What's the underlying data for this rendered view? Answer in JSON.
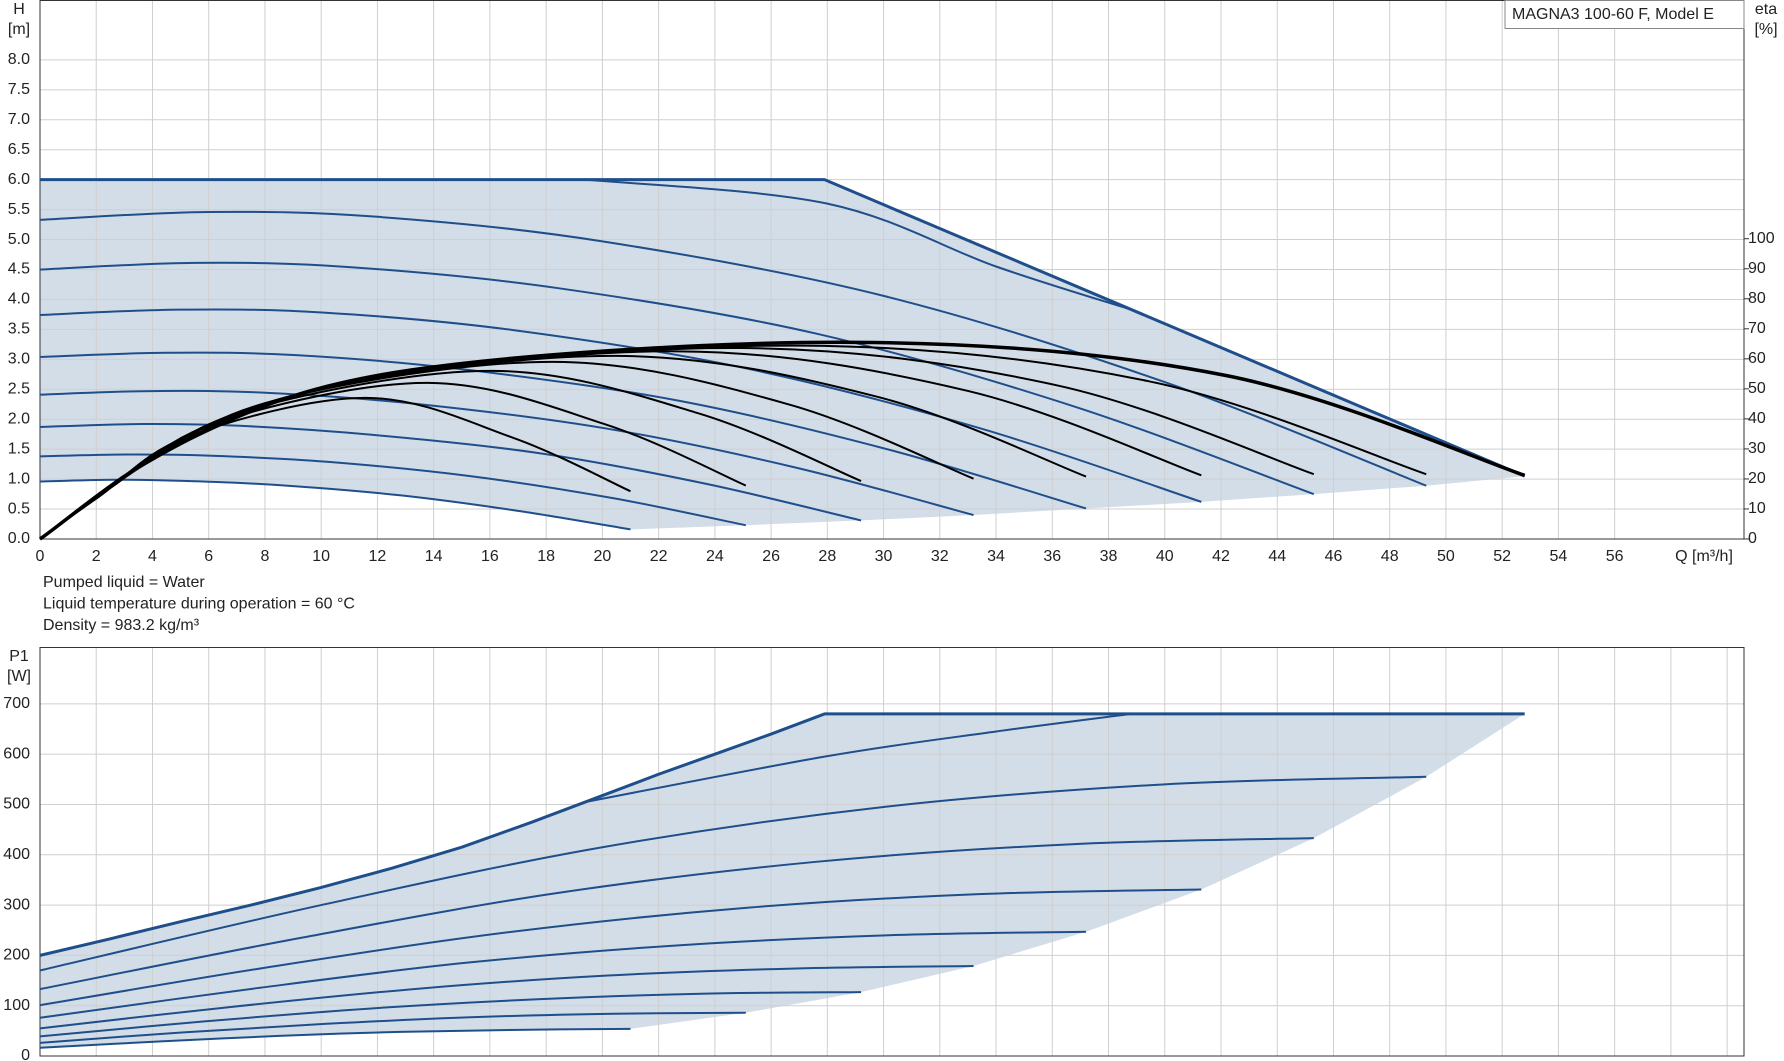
{
  "chart_data": [
    {
      "type": "line",
      "title": "MAGNA3 100-60 F, Model E",
      "ylabel": "H",
      "yunit": "[m]",
      "y2label": "eta",
      "y2unit": "[%]",
      "xlabel": "Q [m³/h]",
      "annotations": [
        "Pumped liquid = Water",
        "Liquid temperature during operation = 60 °C",
        "Density = 983.2 kg/m³"
      ],
      "xlim": [
        0,
        60.6
      ],
      "xticks": [
        0,
        2,
        4,
        6,
        8,
        10,
        12,
        14,
        16,
        18,
        20,
        22,
        24,
        26,
        28,
        30,
        32,
        34,
        36,
        38,
        40,
        42,
        44,
        46,
        48,
        50,
        52,
        54,
        56
      ],
      "ylim": [
        0,
        9
      ],
      "yticks": [
        {
          "value": 0,
          "label": "0.0"
        },
        0.5,
        {
          "value": 1,
          "label": "1.0"
        },
        1.5,
        {
          "value": 2,
          "label": "2.0"
        },
        2.5,
        {
          "value": 3,
          "label": "3.0"
        },
        3.5,
        {
          "value": 4,
          "label": "4.0"
        },
        4.5,
        {
          "value": 5,
          "label": "5.0"
        },
        5.5,
        {
          "value": 6,
          "label": "6.0"
        },
        6.5,
        {
          "value": 7,
          "label": "7.0"
        },
        7.5,
        {
          "value": 8,
          "label": "8.0"
        }
      ],
      "y2lim": [
        0,
        179.5
      ],
      "y2ticks": [
        0,
        10,
        20,
        30,
        40,
        50,
        60,
        70,
        80,
        90,
        100
      ],
      "grid": true,
      "area_color": "#d3dde8",
      "series": [
        {
          "color": "#1f4f8b",
          "width": 3,
          "smooth": false,
          "x": [
            0,
            27.9,
            52.8
          ],
          "values": [
            6.0,
            6.0,
            1.05
          ]
        },
        {
          "color": "#1f4f8b",
          "width": 2,
          "x": [
            19.4,
            28,
            34,
            38.8
          ],
          "values": [
            6.0,
            5.6,
            4.55,
            3.83
          ]
        },
        {
          "color": "#1f4f8b",
          "width": 2,
          "x": [
            0,
            6,
            12,
            20,
            30,
            40,
            49.3
          ],
          "values": [
            5.33,
            5.46,
            5.38,
            4.97,
            4.06,
            2.62,
            0.89
          ]
        },
        {
          "color": "#1f4f8b",
          "width": 2,
          "x": [
            0,
            5.5,
            11.0,
            18.4,
            27.6,
            36.8,
            45.3
          ],
          "values": [
            4.5,
            4.61,
            4.54,
            4.19,
            3.43,
            2.21,
            0.75
          ]
        },
        {
          "color": "#1f4f8b",
          "width": 2,
          "x": [
            0,
            5.0,
            10.1,
            16.8,
            25.1,
            33.5,
            41.3
          ],
          "values": [
            3.74,
            3.83,
            3.78,
            3.49,
            2.85,
            1.84,
            0.62
          ]
        },
        {
          "color": "#1f4f8b",
          "width": 2,
          "x": [
            0,
            4.5,
            9.1,
            15.1,
            22.7,
            30.2,
            37.2
          ],
          "values": [
            3.04,
            3.11,
            3.07,
            2.83,
            2.31,
            1.49,
            0.51
          ]
        },
        {
          "color": "#1f4f8b",
          "width": 2,
          "x": [
            0,
            4.0,
            8.1,
            13.5,
            20.2,
            26.9,
            33.2
          ],
          "values": [
            2.41,
            2.47,
            2.44,
            2.25,
            1.84,
            1.19,
            0.4
          ]
        },
        {
          "color": "#1f4f8b",
          "width": 2,
          "x": [
            0,
            3.6,
            7.1,
            11.8,
            17.8,
            23.7,
            29.2
          ],
          "values": [
            1.87,
            1.92,
            1.89,
            1.74,
            1.43,
            0.92,
            0.31
          ]
        },
        {
          "color": "#1f4f8b",
          "width": 2,
          "x": [
            0,
            3.1,
            6.1,
            10.2,
            15.3,
            20.4,
            25.1
          ],
          "values": [
            1.38,
            1.41,
            1.39,
            1.29,
            1.05,
            0.68,
            0.23
          ]
        },
        {
          "color": "#1f4f8b",
          "width": 2,
          "x": [
            0,
            2.6,
            5.1,
            8.5,
            12.8,
            17.0,
            21.0
          ],
          "values": [
            0.96,
            0.99,
            0.97,
            0.9,
            0.73,
            0.47,
            0.16
          ]
        },
        {
          "color": "#000000",
          "width": 2,
          "axis": "y2",
          "x": [
            0,
            2.1,
            5.3,
            11.6,
            16.8,
            21.0
          ],
          "values": [
            0,
            14.1,
            34.3,
            47,
            33.8,
            15.9
          ]
        },
        {
          "color": "#000000",
          "width": 2,
          "axis": "y2",
          "x": [
            0,
            2.5,
            6.3,
            13.8,
            20.1,
            25.1
          ],
          "values": [
            0,
            17.0,
            38.8,
            52,
            38.2,
            17.8
          ]
        },
        {
          "color": "#000000",
          "width": 2,
          "axis": "y2",
          "x": [
            0,
            2.9,
            7.3,
            16.1,
            23.4,
            29.2
          ],
          "values": [
            0,
            19.8,
            42.7,
            56,
            41.9,
            19.3
          ]
        },
        {
          "color": "#000000",
          "width": 2,
          "axis": "y2",
          "x": [
            0,
            3.3,
            8.3,
            18.3,
            26.6,
            33.2
          ],
          "values": [
            0,
            22.4,
            46.0,
            59,
            44.9,
            20.1
          ]
        },
        {
          "color": "#000000",
          "width": 2,
          "axis": "y2",
          "x": [
            0,
            3.7,
            9.3,
            20.5,
            29.8,
            37.2
          ],
          "values": [
            0,
            24.7,
            48.5,
            61,
            47.3,
            20.8
          ]
        },
        {
          "color": "#000000",
          "width": 2,
          "axis": "y2",
          "x": [
            0,
            4.1,
            10.3,
            22.7,
            33.0,
            41.3
          ],
          "values": [
            0,
            26.9,
            50.7,
            62.5,
            49.3,
            21.2
          ]
        },
        {
          "color": "#000000",
          "width": 2,
          "axis": "y2",
          "x": [
            0,
            4.5,
            11.3,
            24.9,
            36.2,
            45.3
          ],
          "values": [
            0,
            29.1,
            52.7,
            63.6,
            51.1,
            21.6
          ]
        },
        {
          "color": "#000000",
          "width": 2,
          "axis": "y2",
          "x": [
            0,
            4.9,
            12.3,
            27.1,
            39.4,
            49.3
          ],
          "values": [
            0,
            31.2,
            54.4,
            64.4,
            52.6,
            21.6
          ]
        },
        {
          "color": "#000000",
          "width": 3.5,
          "axis": "y2",
          "x": [
            0,
            5.3,
            13.2,
            29.0,
            42.2,
            52.8
          ],
          "values": [
            0,
            33.4,
            56.3,
            65.5,
            54.4,
            21.2
          ]
        }
      ]
    },
    {
      "type": "line",
      "ylabel": "P1",
      "yunit": "[W]",
      "xlim": [
        0,
        60.6
      ],
      "xticks": [
        0,
        2,
        4,
        6,
        8,
        10,
        12,
        14,
        16,
        18,
        20,
        22,
        24,
        26,
        28,
        30,
        32,
        34,
        36,
        38,
        40,
        42,
        44,
        46,
        48,
        50,
        52,
        54,
        56,
        58,
        60
      ],
      "xtick_labels": false,
      "ylim": [
        0,
        813
      ],
      "yticks": [
        0,
        100,
        200,
        300,
        400,
        500,
        600,
        700
      ],
      "grid": true,
      "area_color": "#d3dde8",
      "series": [
        {
          "color": "#1f4f8b",
          "width": 3,
          "smooth": false,
          "x": [
            0,
            2.5,
            5,
            7.5,
            10,
            12.5,
            15,
            17.5,
            19.4,
            22,
            24,
            26,
            27.9,
            52.8
          ],
          "values": [
            200,
            233,
            267,
            300,
            335,
            373,
            415,
            465,
            505,
            560,
            600,
            640,
            680,
            680
          ]
        },
        {
          "color": "#1f4f8b",
          "width": 2,
          "x": [
            19.4,
            28,
            34,
            38.8
          ],
          "values": [
            505,
            596,
            645,
            680
          ]
        },
        {
          "color": "#1f4f8b",
          "width": 2,
          "x": [
            0,
            10,
            20,
            30,
            40,
            49.3
          ],
          "values": [
            170,
            300,
            415,
            495,
            540,
            555
          ]
        },
        {
          "color": "#1f4f8b",
          "width": 2,
          "x": [
            0,
            9.2,
            18.4,
            27.6,
            36.7,
            45.3
          ],
          "values": [
            133,
            234,
            324,
            386,
            421,
            433
          ]
        },
        {
          "color": "#1f4f8b",
          "width": 2,
          "x": [
            0,
            8.4,
            16.8,
            25.2,
            33.5,
            41.3
          ],
          "values": [
            101,
            179,
            247,
            295,
            322,
            331
          ]
        },
        {
          "color": "#1f4f8b",
          "width": 2,
          "x": [
            0,
            7.6,
            15.1,
            22.7,
            30.2,
            37.2
          ],
          "values": [
            76,
            134,
            185,
            220,
            240,
            247
          ]
        },
        {
          "color": "#1f4f8b",
          "width": 2,
          "x": [
            0,
            6.7,
            13.5,
            20.2,
            26.9,
            33.2
          ],
          "values": [
            55,
            97,
            134,
            160,
            174,
            179
          ]
        },
        {
          "color": "#1f4f8b",
          "width": 2,
          "x": [
            0,
            5.9,
            11.9,
            17.8,
            23.7,
            29.2
          ],
          "values": [
            39,
            69,
            95,
            113,
            124,
            127
          ]
        },
        {
          "color": "#1f4f8b",
          "width": 2,
          "x": [
            0,
            5.1,
            10.2,
            15.3,
            20.4,
            25.1
          ],
          "values": [
            26,
            47,
            64,
            77,
            84,
            86
          ]
        },
        {
          "color": "#1f4f8b",
          "width": 2,
          "x": [
            0,
            4.3,
            8.5,
            12.8,
            17.0,
            21.0
          ],
          "values": [
            16.5,
            29,
            40,
            48,
            52,
            54
          ]
        }
      ]
    }
  ]
}
